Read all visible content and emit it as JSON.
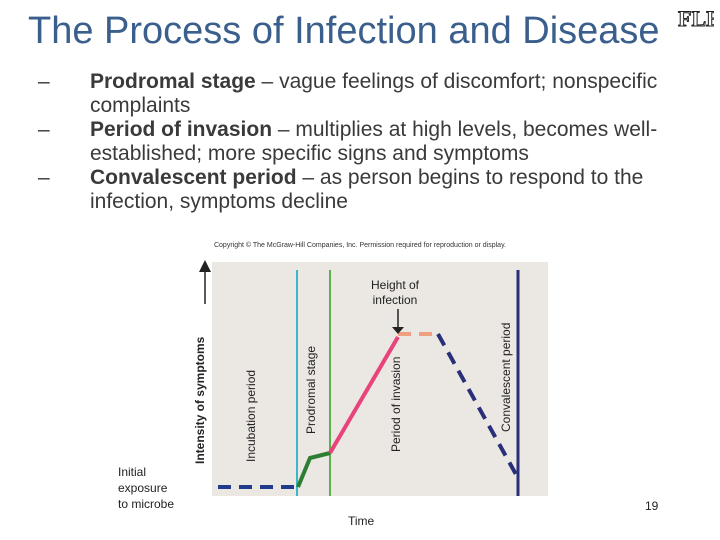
{
  "title": "The Process of Infection and Disease",
  "logo": {
    "text": "FLEX",
    "icon": "flex-logo"
  },
  "bullets": [
    {
      "dash": "–",
      "lead": "Prodromal stage",
      "rest": " – vague feelings of discomfort; nonspecific complaints"
    },
    {
      "dash": "–",
      "lead": "Period of invasion",
      "rest": " – multiplies at high levels, becomes well-established; more specific signs and symptoms"
    },
    {
      "dash": "–",
      "lead": "Convalescent period",
      "rest": " – as person begins to respond to the infection, symptoms decline"
    }
  ],
  "copyright": "Copyright © The McGraw-Hill Companies, Inc. Permission required for reproduction or display.",
  "figure": {
    "y_axis_label": "Intensity of symptoms",
    "x_axis_label": "Time",
    "phases": [
      "Incubation period",
      "Prodromal stage",
      "Period of invasion",
      "Convalescent period"
    ],
    "height_note": "Height of infection",
    "initial_note": [
      "Initial",
      "exposure",
      "to microbe"
    ],
    "colors": {
      "incubation": "#1f3c8c",
      "prodromal_line": "#2d7d32",
      "invasion": "#e8437a",
      "peak": "#f0a080",
      "convalescent": "#2a2f7a",
      "phase_prodromal": "#3cb6c8",
      "phase_invasion": "#5bb04c",
      "phase_convalescent": "#e14b8a"
    }
  },
  "page_number": "19"
}
